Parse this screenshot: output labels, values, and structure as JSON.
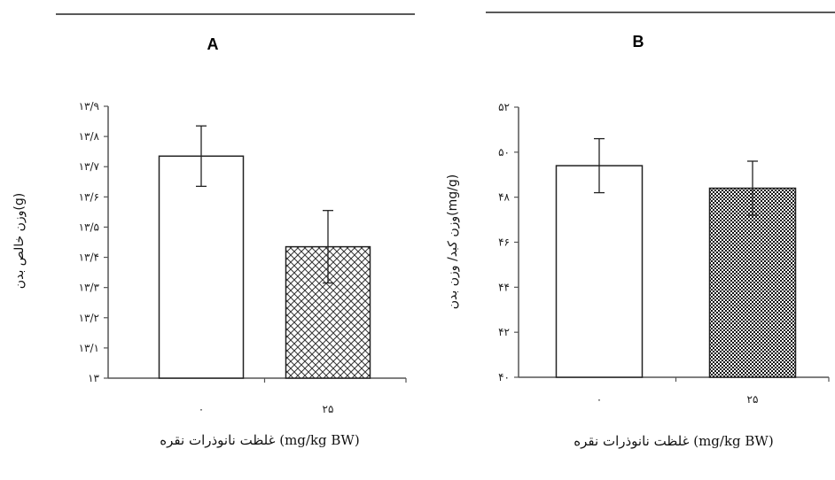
{
  "chart_data": [
    {
      "type": "bar",
      "title": "A",
      "ylabel": "وزن خالص بدن(g)",
      "xlabel": "غلظت نانوذرات نقره (mg/kg BW)",
      "categories": [
        "۰",
        "۲۵"
      ],
      "values": [
        13.735,
        13.435
      ],
      "error": [
        0.1,
        0.12
      ],
      "ylim": [
        13,
        13.9
      ],
      "yticks": [
        13,
        13.1,
        13.2,
        13.3,
        13.4,
        13.5,
        13.6,
        13.7,
        13.8,
        13.9
      ],
      "ytick_labels": [
        "۱۳",
        "۱۳/۱",
        "۱۳/۲",
        "۱۳/۳",
        "۱۳/۴",
        "۱۳/۵",
        "۱۳/۶",
        "۱۳/۷",
        "۱۳/۸",
        "۱۳/۹"
      ],
      "bar_styles": [
        "white",
        "crosshatch"
      ],
      "grid": false
    },
    {
      "type": "bar",
      "title": "B",
      "ylabel": "وزن کبد/ وزن بدن(mg/g)",
      "xlabel": "غلظت نانوذرات نقره (mg/kg BW)",
      "categories": [
        "۰",
        "۲۵"
      ],
      "values": [
        49.4,
        48.4
      ],
      "error": [
        1.2,
        1.2
      ],
      "ylim": [
        40,
        52
      ],
      "yticks": [
        40,
        42,
        44,
        46,
        48,
        50,
        52
      ],
      "ytick_labels": [
        "۴۰",
        "۴۲",
        "۴۴",
        "۴۶",
        "۴۸",
        "۵۰",
        "۵۲"
      ],
      "bar_styles": [
        "white",
        "checker"
      ],
      "grid": false
    }
  ]
}
